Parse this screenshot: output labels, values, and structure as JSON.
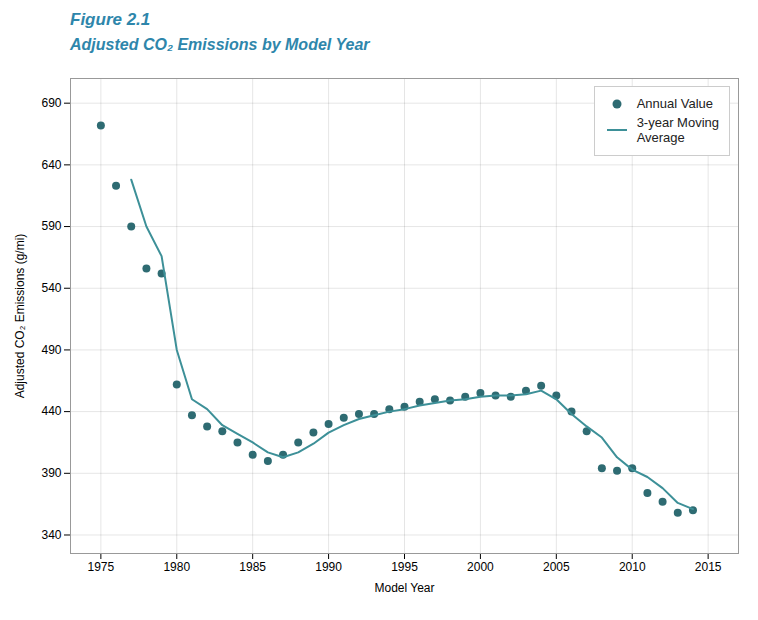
{
  "chart_data": {
    "type": "line",
    "title": "Figure 2.1",
    "subtitle": "Adjusted CO₂ Emissions by Model Year",
    "xlabel": "Model Year",
    "ylabel": "Adjusted CO₂ Emissions (g/mi)",
    "x": [
      1975,
      1976,
      1977,
      1978,
      1979,
      1980,
      1981,
      1982,
      1983,
      1984,
      1985,
      1986,
      1987,
      1988,
      1989,
      1990,
      1991,
      1992,
      1993,
      1994,
      1995,
      1996,
      1997,
      1998,
      1999,
      2000,
      2001,
      2002,
      2003,
      2004,
      2005,
      2006,
      2007,
      2008,
      2009,
      2010,
      2011,
      2012,
      2013,
      2014
    ],
    "series": [
      {
        "name": "Annual Value",
        "type": "scatter",
        "marker": "circle",
        "color": "#2e6b72",
        "values": [
          672,
          623,
          590,
          556,
          552,
          462,
          437,
          428,
          424,
          415,
          405,
          400,
          405,
          415,
          423,
          430,
          435,
          438,
          438,
          442,
          444,
          448,
          450,
          449,
          452,
          455,
          453,
          452,
          457,
          461,
          453,
          440,
          424,
          394,
          392,
          394,
          374,
          367,
          358,
          360
        ]
      },
      {
        "name": "3-year Moving\nAverage",
        "type": "line",
        "line_style": "solid",
        "color": "#3d9098",
        "values": [
          null,
          null,
          628,
          590,
          566,
          490,
          450,
          442,
          429,
          422,
          415,
          407,
          403,
          407,
          414,
          423,
          429,
          434,
          437,
          440,
          442,
          445,
          447,
          449,
          450,
          452,
          453,
          453,
          454,
          457,
          450,
          438,
          428,
          419,
          403,
          393,
          387,
          378,
          366,
          361
        ]
      }
    ],
    "xlim": [
      1973,
      2017
    ],
    "xticks": [
      1975,
      1980,
      1985,
      1990,
      1995,
      2000,
      2005,
      2010,
      2015
    ],
    "ylim": [
      325,
      710
    ],
    "yticks": [
      340,
      390,
      440,
      490,
      540,
      590,
      640,
      690
    ],
    "grid": true,
    "legend": "upper right"
  }
}
